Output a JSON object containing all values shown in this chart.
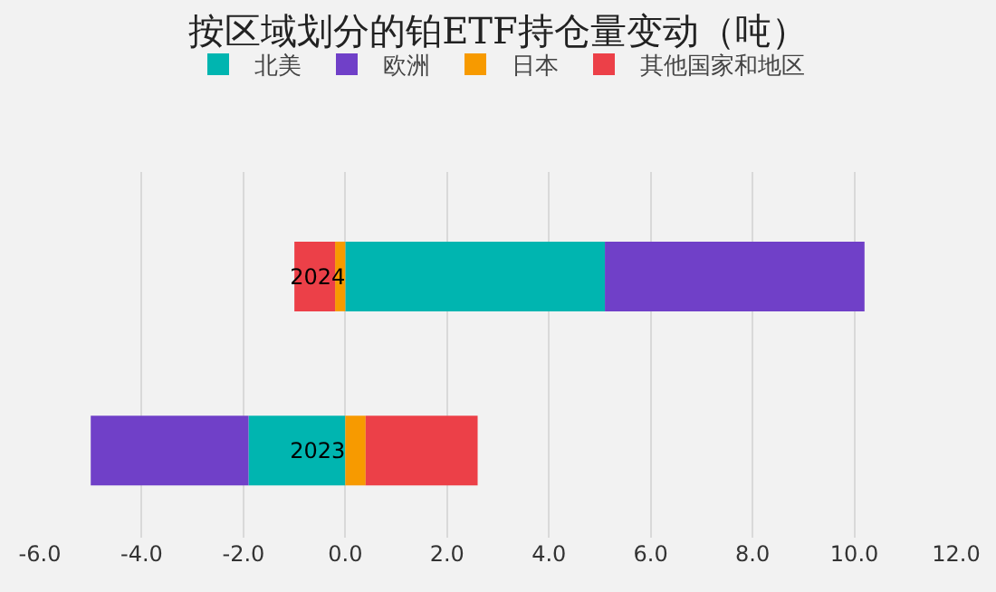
{
  "chart_data": {
    "type": "bar",
    "orientation": "horizontal",
    "stacked": true,
    "title": "按区域划分的铂ETF持仓量变动（吨）",
    "categories": [
      "2024",
      "2023"
    ],
    "series": [
      {
        "name": "北美",
        "color": "#00b5b0",
        "values": [
          5.1,
          -1.9
        ]
      },
      {
        "name": "欧洲",
        "color": "#7040c8",
        "values": [
          5.1,
          -3.1
        ]
      },
      {
        "name": "日本",
        "color": "#f79a00",
        "values": [
          -0.2,
          0.4
        ]
      },
      {
        "name": "其他国家和地区",
        "color": "#ec4048",
        "values": [
          -0.8,
          2.2
        ]
      }
    ],
    "xlim": [
      -6,
      12
    ],
    "xticks": [
      {
        "value": -6,
        "label": "-6.0"
      },
      {
        "value": -4,
        "label": "-4.0"
      },
      {
        "value": -2,
        "label": "-2.0"
      },
      {
        "value": 0,
        "label": "0.0"
      },
      {
        "value": 2,
        "label": "2.0"
      },
      {
        "value": 4,
        "label": "4.0"
      },
      {
        "value": 6,
        "label": "6.0"
      },
      {
        "value": 8,
        "label": "8.0"
      },
      {
        "value": 10,
        "label": "10.0"
      },
      {
        "value": 12,
        "label": "12.0"
      }
    ],
    "grid": "x",
    "legend": "top"
  }
}
